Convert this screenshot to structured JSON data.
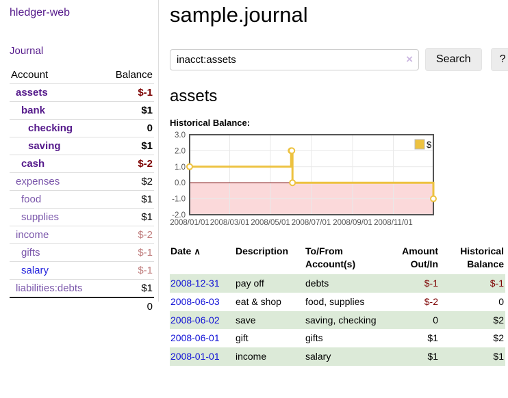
{
  "app": {
    "brand": "hledger-web"
  },
  "nav": {
    "journal": "Journal"
  },
  "sidebar": {
    "header": {
      "account": "Account",
      "balance": "Balance"
    },
    "accounts": [
      {
        "name": "assets",
        "balance": "$-1",
        "indent": 0,
        "matched": true,
        "negative": true
      },
      {
        "name": "bank",
        "balance": "$1",
        "indent": 1,
        "matched": true,
        "negative": false
      },
      {
        "name": "checking",
        "balance": "0",
        "indent": 2,
        "matched": true,
        "negative": false
      },
      {
        "name": "saving",
        "balance": "$1",
        "indent": 2,
        "matched": true,
        "negative": false
      },
      {
        "name": "cash",
        "balance": "$-2",
        "indent": 1,
        "matched": true,
        "negative": true
      },
      {
        "name": "expenses",
        "balance": "$2",
        "indent": 0,
        "matched": false,
        "negative": false
      },
      {
        "name": "food",
        "balance": "$1",
        "indent": 1,
        "matched": false,
        "negative": false
      },
      {
        "name": "supplies",
        "balance": "$1",
        "indent": 1,
        "matched": false,
        "negative": false
      },
      {
        "name": "income",
        "balance": "$-2",
        "indent": 0,
        "matched": false,
        "negative": true
      },
      {
        "name": "gifts",
        "balance": "$-1",
        "indent": 1,
        "matched": false,
        "negative": true
      },
      {
        "name": "salary",
        "balance": "$-1",
        "indent": 1,
        "matched": false,
        "negative": true,
        "unvisited_link": true
      },
      {
        "name": "liabilities:debts",
        "balance": "$1",
        "indent": 0,
        "matched": false,
        "negative": false
      }
    ],
    "total": "0"
  },
  "header": {
    "title": "sample.journal"
  },
  "search": {
    "value": "inacct:assets",
    "clear_icon": "×",
    "button_label": "Search",
    "help_label": "?"
  },
  "account_page": {
    "title": "assets",
    "chart_label": "Historical Balance:"
  },
  "chart_data": {
    "type": "line",
    "title": "Historical Balance",
    "step": true,
    "legend_position": "top-right",
    "grid": true,
    "ylim": [
      -2,
      3
    ],
    "xlim_days": [
      0,
      365
    ],
    "yticks": [
      "3.0",
      "2.0",
      "1.0",
      "0.0",
      "-1.0",
      "-2.0"
    ],
    "xticks": [
      {
        "label": "2008/01/01",
        "day": 0
      },
      {
        "label": "2008/03/01",
        "day": 60
      },
      {
        "label": "2008/05/01",
        "day": 121
      },
      {
        "label": "2008/07/01",
        "day": 182
      },
      {
        "label": "2008/09/01",
        "day": 244
      },
      {
        "label": "2008/11/01",
        "day": 305
      }
    ],
    "series": [
      {
        "name": "$",
        "color": "#edc240",
        "points": [
          {
            "date": "2008-01-01",
            "day": 0,
            "y": 1
          },
          {
            "date": "2008-06-01",
            "day": 152,
            "y": 2
          },
          {
            "date": "2008-06-02",
            "day": 153,
            "y": 2
          },
          {
            "date": "2008-06-03",
            "day": 154,
            "y": 0
          },
          {
            "date": "2008-12-31",
            "day": 365,
            "y": -1
          }
        ]
      }
    ],
    "zero_line_color": "#7a0000",
    "negative_region_color": "#fbd9da",
    "gridline_color": "#e9e9e9",
    "border_color": "#545454",
    "tick_label_color": "#545454"
  },
  "register": {
    "columns": [
      "Date",
      "Description",
      "To/From Account(s)",
      "Amount Out/In",
      "Historical Balance"
    ],
    "sort_icon": "∧",
    "rows": [
      {
        "date": "2008-12-31",
        "description": "pay off",
        "accounts": "debts",
        "amount": "$-1",
        "balance": "$-1",
        "amount_negative": true,
        "balance_negative": true
      },
      {
        "date": "2008-06-03",
        "description": "eat & shop",
        "accounts": "food, supplies",
        "amount": "$-2",
        "balance": "0",
        "amount_negative": true,
        "balance_negative": false
      },
      {
        "date": "2008-06-02",
        "description": "save",
        "accounts": "saving, checking",
        "amount": "0",
        "balance": "$2",
        "amount_negative": false,
        "balance_negative": false
      },
      {
        "date": "2008-06-01",
        "description": "gift",
        "accounts": "gifts",
        "amount": "$1",
        "balance": "$2",
        "amount_negative": false,
        "balance_negative": false
      },
      {
        "date": "2008-01-01",
        "description": "income",
        "accounts": "salary",
        "amount": "$1",
        "balance": "$1",
        "amount_negative": false,
        "balance_negative": false
      }
    ]
  }
}
